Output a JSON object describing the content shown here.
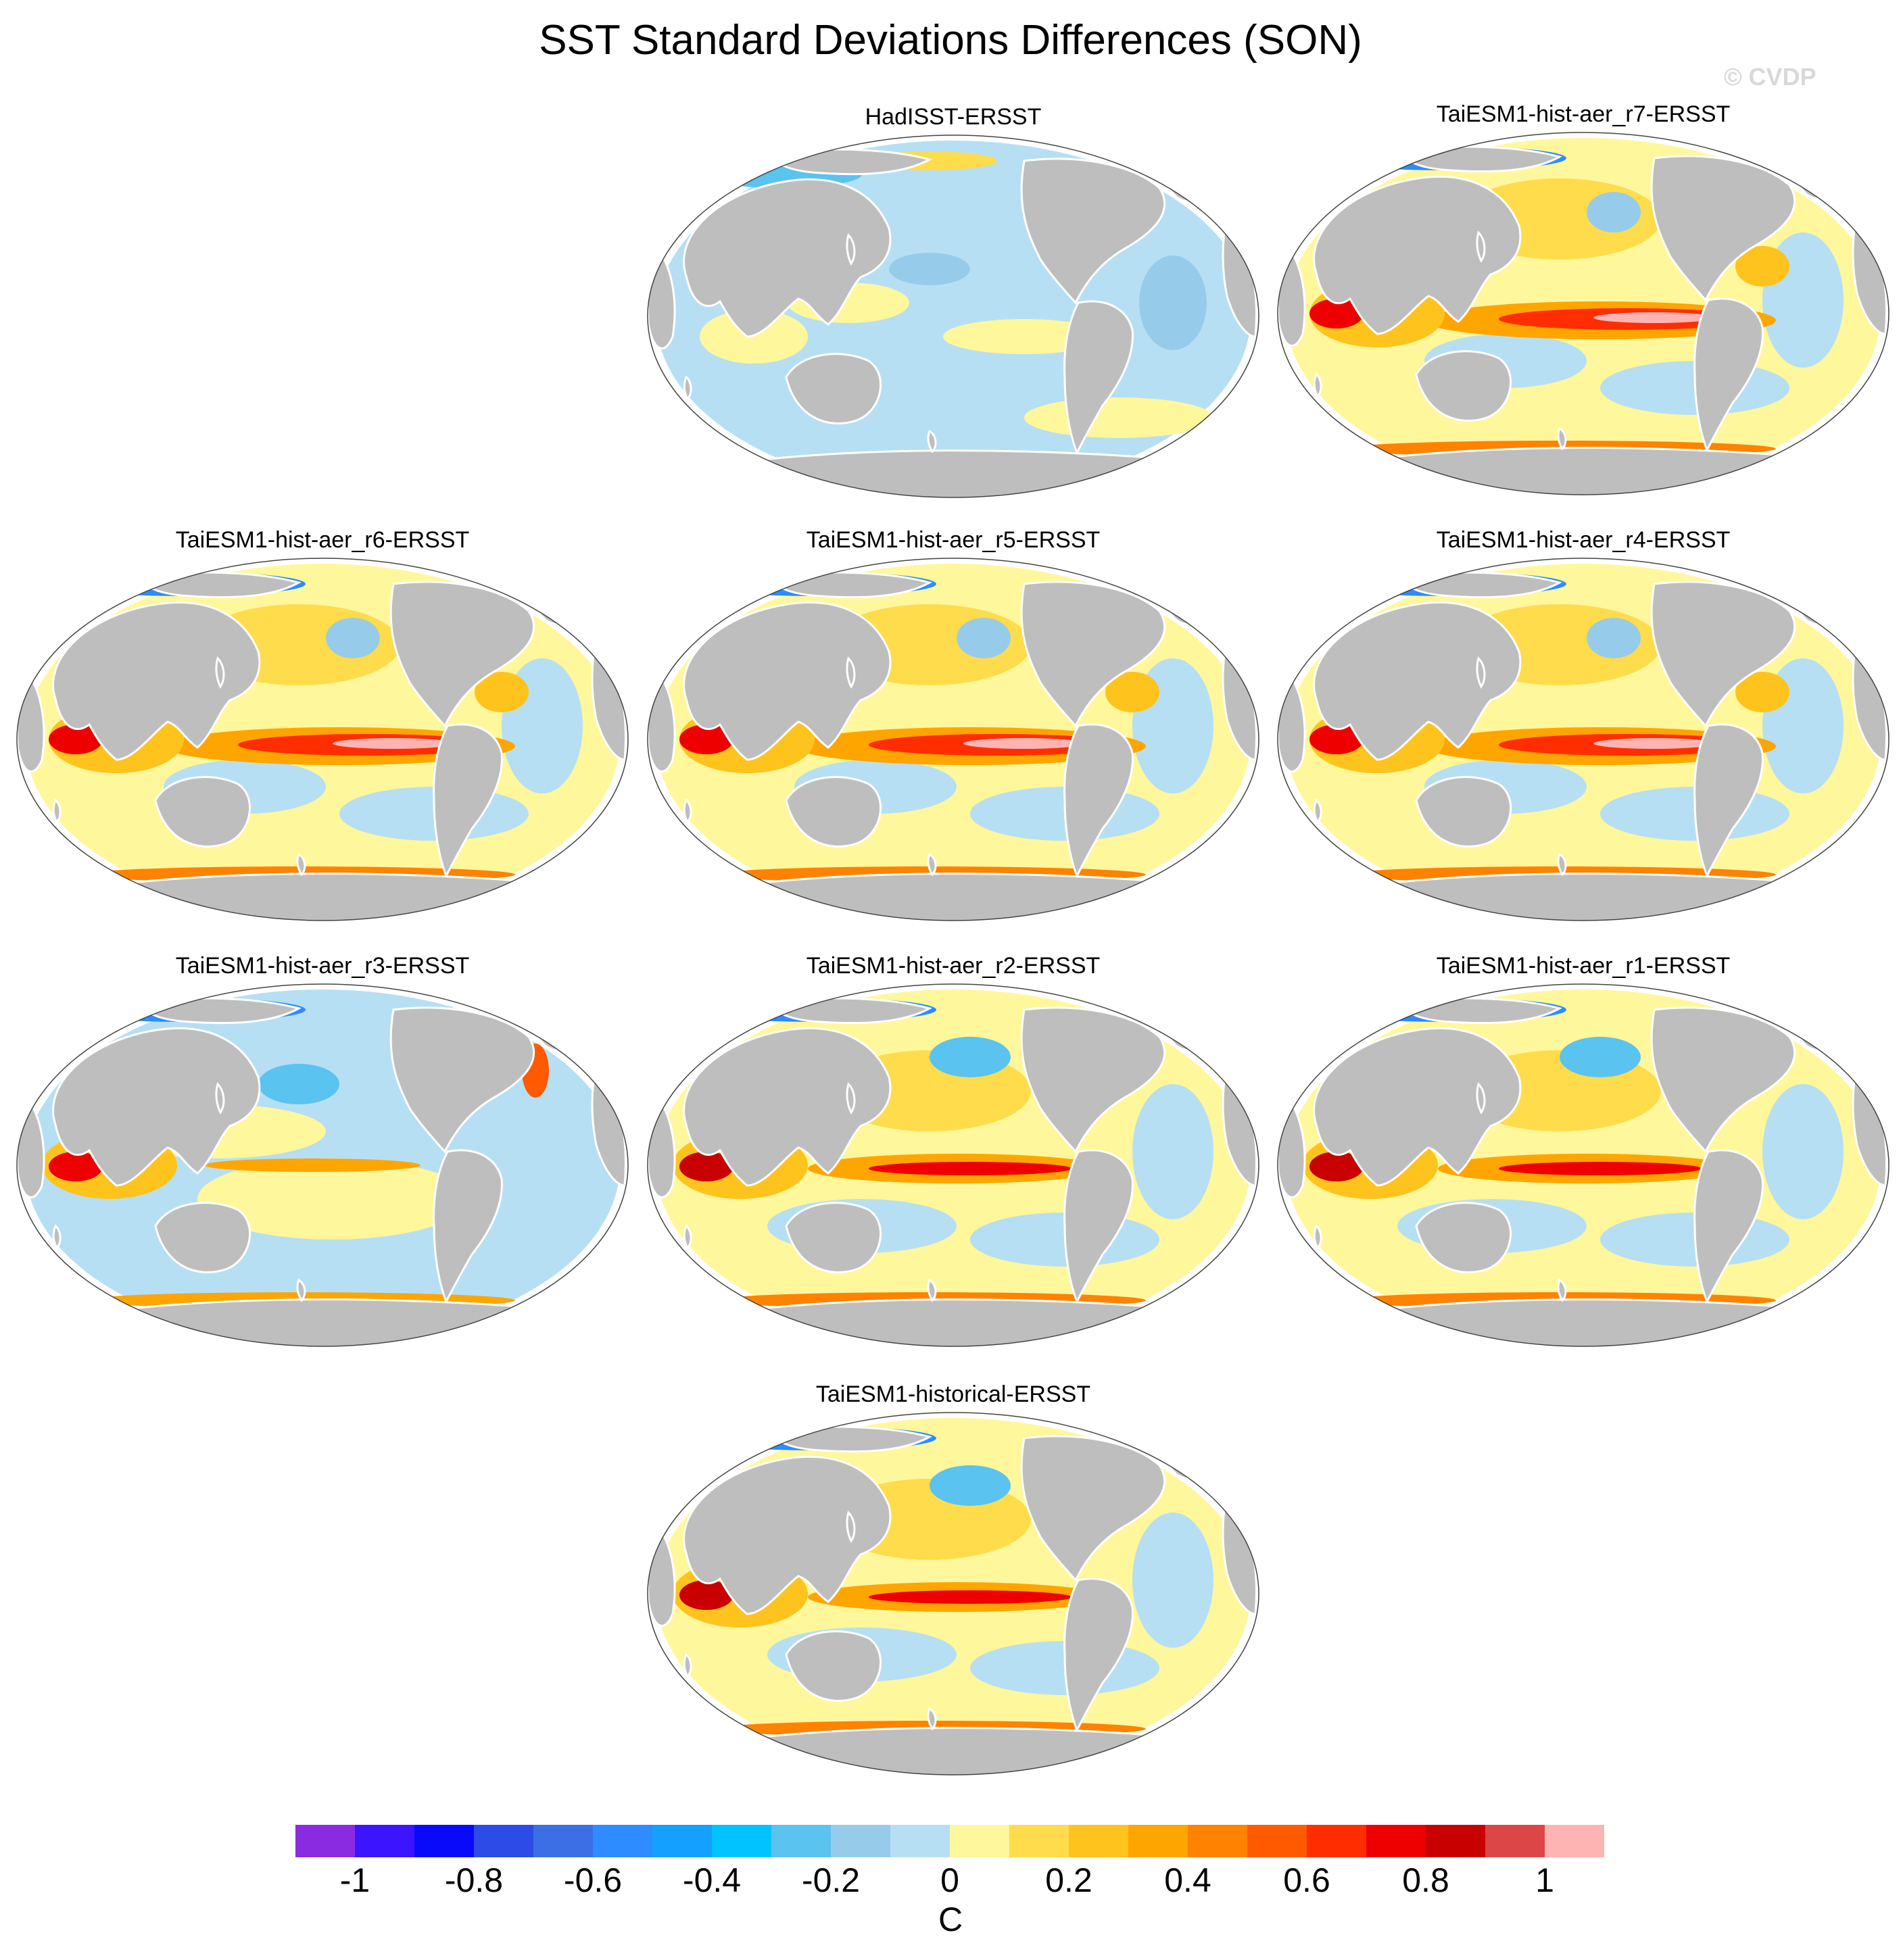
{
  "title": "SST Standard Deviations Differences (SON)",
  "watermark": "© CVDP",
  "panels": [
    {
      "label": "HadISST-ERSST",
      "style": "obs"
    },
    {
      "label": "TaiESM1-hist-aer_r7-ERSST",
      "style": "strong"
    },
    {
      "label": "TaiESM1-hist-aer_r6-ERSST",
      "style": "strong"
    },
    {
      "label": "TaiESM1-hist-aer_r5-ERSST",
      "style": "strong"
    },
    {
      "label": "TaiESM1-hist-aer_r4-ERSST",
      "style": "strong"
    },
    {
      "label": "TaiESM1-hist-aer_r3-ERSST",
      "style": "weak"
    },
    {
      "label": "TaiESM1-hist-aer_r2-ERSST",
      "style": "medium"
    },
    {
      "label": "TaiESM1-hist-aer_r1-ERSST",
      "style": "medium"
    },
    {
      "label": "TaiESM1-historical-ERSST",
      "style": "medium"
    }
  ],
  "colorbar": {
    "unit": "C",
    "tick_labels": [
      "-1",
      "-0.8",
      "-0.6",
      "-0.4",
      "-0.2",
      "0",
      "0.2",
      "0.4",
      "0.6",
      "0.8",
      "1"
    ],
    "bins": [
      "#8a2be2",
      "#3c14ff",
      "#0a0afa",
      "#2d4be6",
      "#3c6ee6",
      "#2d8cff",
      "#14a0ff",
      "#00c3ff",
      "#5ac3f0",
      "#96ccea",
      "#b7dff3",
      "#fff79c",
      "#ffdc4b",
      "#ffc31e",
      "#ffa500",
      "#ff8200",
      "#ff5a00",
      "#ff2d00",
      "#ee0000",
      "#c80000",
      "#dc4646",
      "#ffb4b4"
    ]
  },
  "colors": {
    "land": "#bebebe",
    "coast": "#ffffff",
    "neutral_positive": "#fff79c",
    "neutral_negative": "#b7dff3"
  }
}
